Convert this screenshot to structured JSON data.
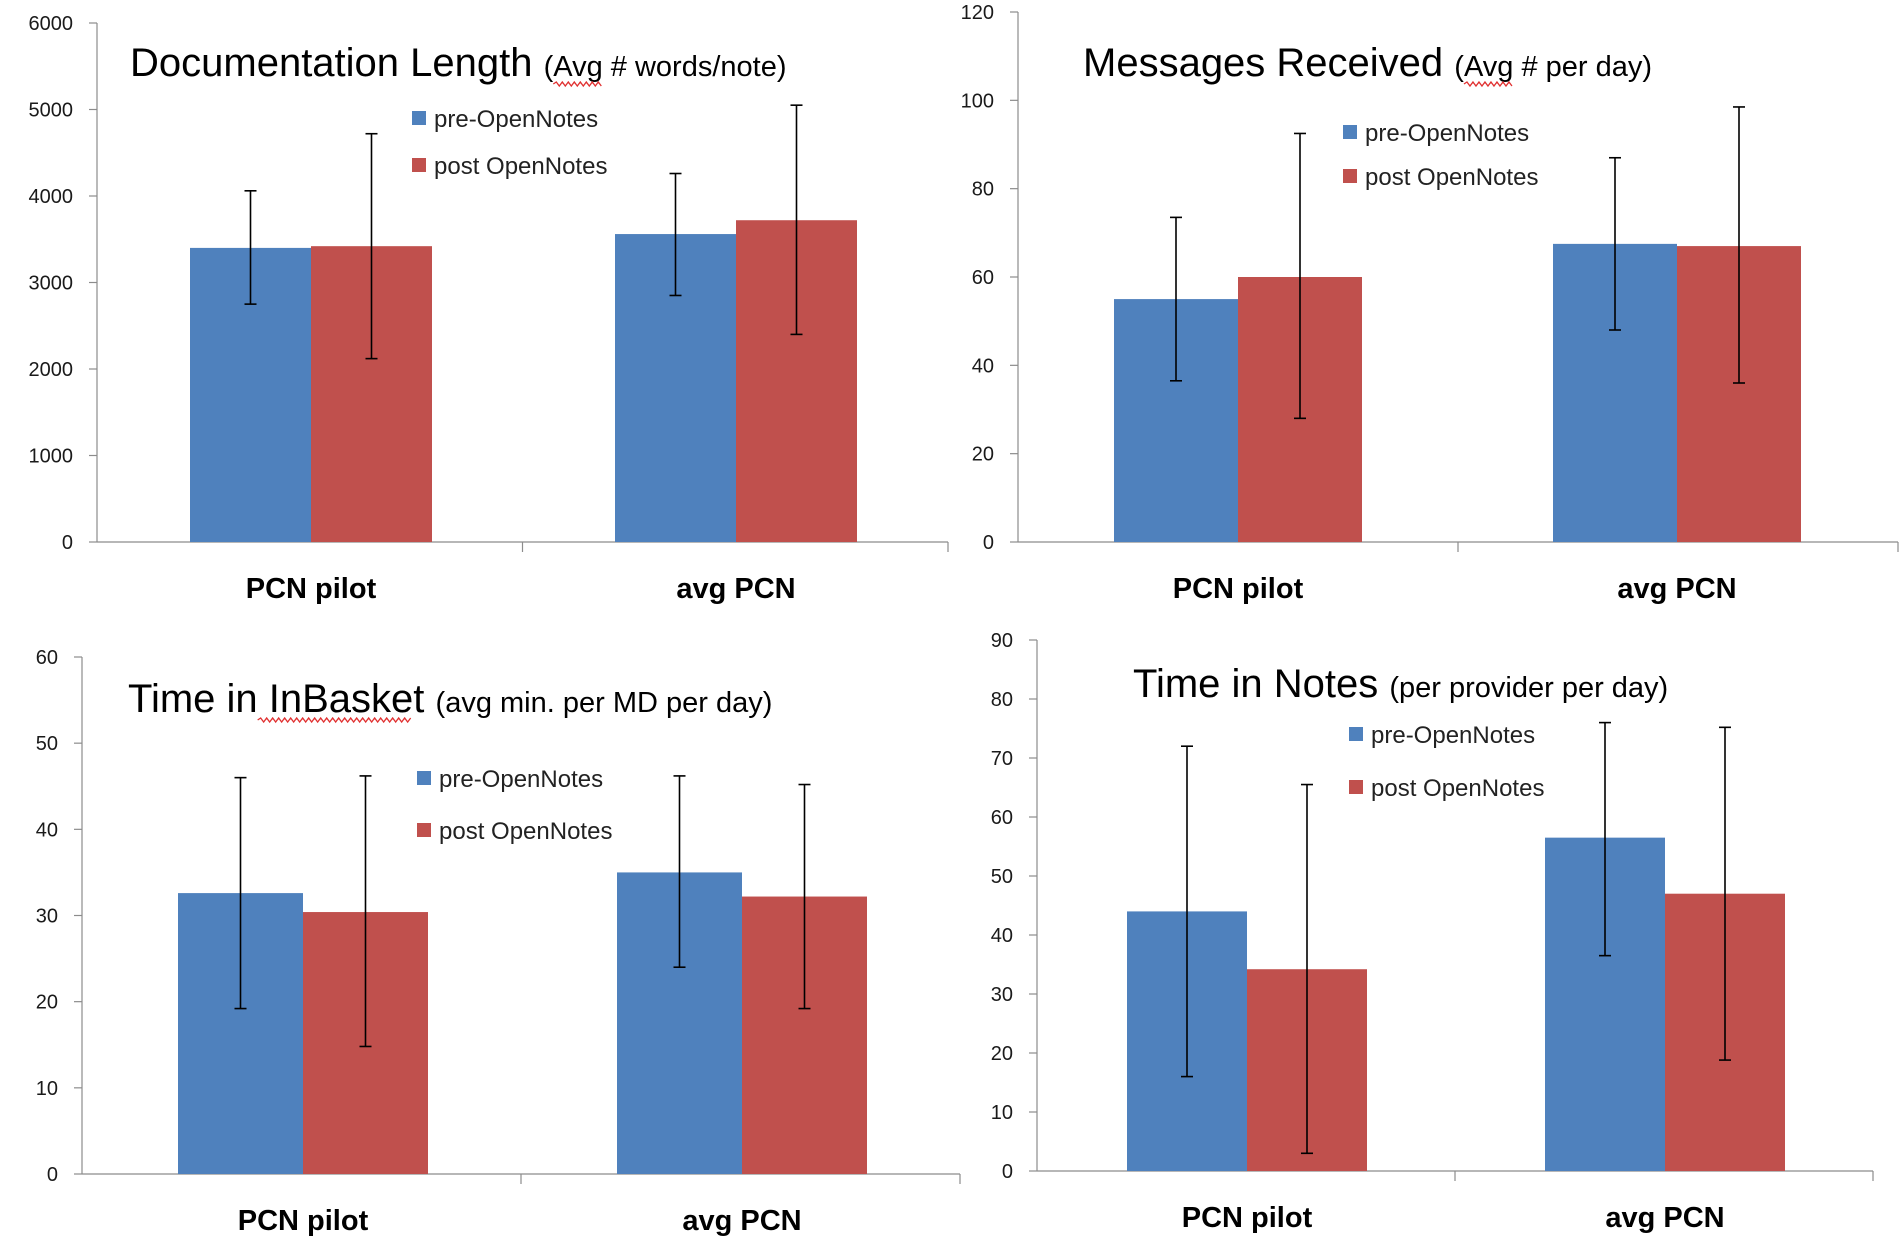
{
  "colors": {
    "pre": "#4f81bd",
    "post": "#c0504d"
  },
  "chart_data": [
    {
      "type": "bar",
      "title": "Documentation Length",
      "subtitle": "(Avg # words/note)",
      "spellcheck_word": "Avg",
      "categories": [
        "PCN pilot",
        "avg PCN"
      ],
      "ylim": [
        0,
        6000
      ],
      "yticks": [
        0,
        1000,
        2000,
        3000,
        4000,
        5000,
        6000
      ],
      "grid": false,
      "legend_position": "top-center",
      "series": [
        {
          "name": "pre-OpenNotes",
          "values": [
            3400,
            3560
          ],
          "err_low": [
            2750,
            2850
          ],
          "err_high": [
            4060,
            4260
          ]
        },
        {
          "name": "post OpenNotes",
          "values": [
            3420,
            3720
          ],
          "err_low": [
            2120,
            2400
          ],
          "err_high": [
            4720,
            5050
          ]
        }
      ]
    },
    {
      "type": "bar",
      "title": "Messages Received",
      "subtitle": "(Avg # per day)",
      "spellcheck_word": "Avg",
      "categories": [
        "PCN pilot",
        "avg PCN"
      ],
      "ylim": [
        0,
        120
      ],
      "yticks": [
        0,
        20,
        40,
        60,
        80,
        100,
        120
      ],
      "grid": false,
      "legend_position": "top-center",
      "series": [
        {
          "name": "pre-OpenNotes",
          "values": [
            55,
            67.5
          ],
          "err_low": [
            36.5,
            48
          ],
          "err_high": [
            73.5,
            87
          ]
        },
        {
          "name": "post OpenNotes",
          "values": [
            60,
            67
          ],
          "err_low": [
            28,
            36
          ],
          "err_high": [
            92.5,
            98.5
          ]
        }
      ]
    },
    {
      "type": "bar",
      "title": "Time in InBasket",
      "subtitle": "(avg min. per MD per day)",
      "spellcheck_word": "InBasket",
      "categories": [
        "PCN pilot",
        "avg PCN"
      ],
      "ylim": [
        0,
        60
      ],
      "yticks": [
        0,
        10,
        20,
        30,
        40,
        50,
        60
      ],
      "grid": false,
      "legend_position": "top-center",
      "series": [
        {
          "name": "pre-OpenNotes",
          "values": [
            32.6,
            35
          ],
          "err_low": [
            19.2,
            24
          ],
          "err_high": [
            46,
            46.2
          ]
        },
        {
          "name": "post OpenNotes",
          "values": [
            30.4,
            32.2
          ],
          "err_low": [
            14.8,
            19.2
          ],
          "err_high": [
            46.2,
            45.2
          ]
        }
      ]
    },
    {
      "type": "bar",
      "title": "Time in Notes",
      "subtitle": "(per provider per day)",
      "spellcheck_word": "",
      "categories": [
        "PCN pilot",
        "avg PCN"
      ],
      "ylim": [
        0,
        90
      ],
      "yticks": [
        0,
        10,
        20,
        30,
        40,
        50,
        60,
        70,
        80,
        90
      ],
      "grid": false,
      "legend_position": "top-center",
      "series": [
        {
          "name": "pre-OpenNotes",
          "values": [
            44,
            56.5
          ],
          "err_low": [
            16,
            36.5
          ],
          "err_high": [
            72,
            76
          ]
        },
        {
          "name": "post OpenNotes",
          "values": [
            34.2,
            47
          ],
          "err_low": [
            3,
            18.8
          ],
          "err_high": [
            65.5,
            75.2
          ]
        }
      ]
    }
  ]
}
